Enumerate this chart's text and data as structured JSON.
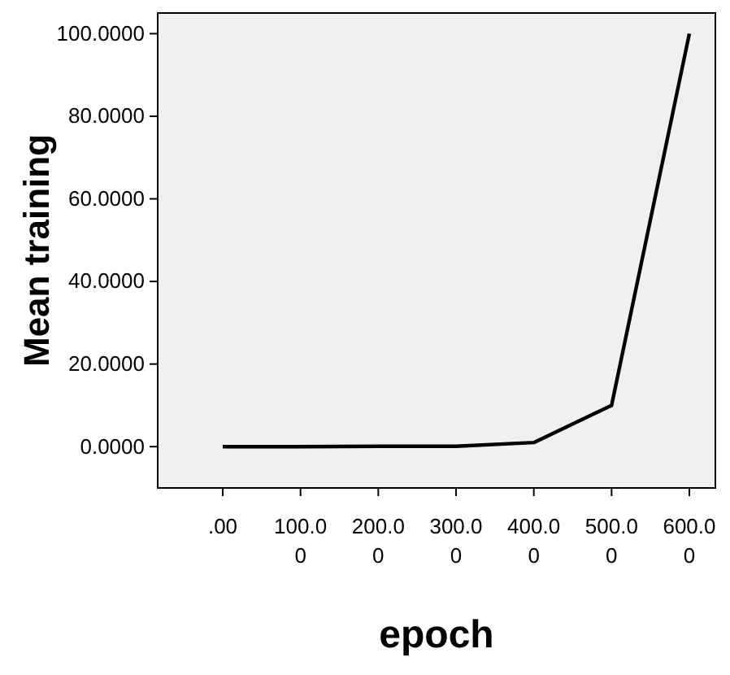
{
  "chart_data": {
    "type": "line",
    "xlabel": "epoch",
    "ylabel": "Mean training",
    "categories": [
      ".00",
      "100.00",
      "200.00",
      "300.00",
      "400.00",
      "500.00",
      "600.00"
    ],
    "series": [
      {
        "color": "#000000",
        "values": [
          0,
          0,
          0.1,
          0.1,
          1,
          10,
          100
        ]
      }
    ],
    "ylim": [
      -10,
      105
    ],
    "yticks": [
      {
        "value": 0,
        "label": "0.0000"
      },
      {
        "value": 20,
        "label": "20.0000"
      },
      {
        "value": 40,
        "label": "40.0000"
      },
      {
        "value": 60,
        "label": "60.0000"
      },
      {
        "value": 80,
        "label": "80.0000"
      },
      {
        "value": 100,
        "label": "100.0000"
      }
    ],
    "grid": false,
    "marker": "none",
    "line_style": "solid"
  }
}
